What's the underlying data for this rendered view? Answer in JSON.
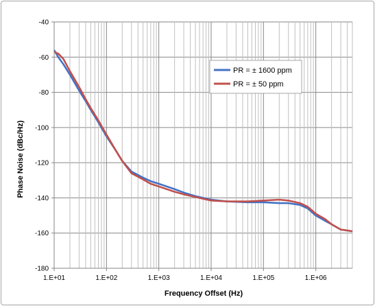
{
  "chart_data": {
    "type": "line",
    "title": "",
    "xlabel": "Frequency Offset (Hz)",
    "ylabel": "Phase Noise (dBc/Hz)",
    "x_scale": "log",
    "xlim": [
      10,
      5000000
    ],
    "ylim": [
      -180,
      -40
    ],
    "x_tick_values": [
      10,
      100,
      1000,
      10000,
      100000,
      1000000
    ],
    "x_tick_labels": [
      "1.E+01",
      "1.E+02",
      "1.E+03",
      "1.E+04",
      "1.E+05",
      "1.E+06"
    ],
    "y_tick_values": [
      -40,
      -60,
      -80,
      -100,
      -120,
      -140,
      -160,
      -180
    ],
    "y_tick_labels": [
      "-40",
      "-60",
      "-80",
      "-100",
      "-120",
      "-140",
      "-160",
      "-180"
    ],
    "grid": true,
    "legend_position": "top-right",
    "series": [
      {
        "name": "PR = ± 1600 ppm",
        "color": "#4472c4",
        "x": [
          10,
          12,
          15,
          20,
          30,
          40,
          50,
          70,
          100,
          150,
          200,
          300,
          500,
          700,
          1000,
          2000,
          3000,
          5000,
          10000,
          20000,
          50000,
          100000,
          200000,
          300000,
          500000,
          700000,
          1000000,
          1500000,
          2000000,
          3000000,
          5000000
        ],
        "y": [
          -56,
          -60,
          -64,
          -70,
          -79,
          -85,
          -90,
          -97,
          -105,
          -113,
          -119,
          -125,
          -128.5,
          -130.5,
          -132,
          -135,
          -137,
          -139,
          -141,
          -142,
          -142.5,
          -142.5,
          -143,
          -143,
          -144,
          -146,
          -150,
          -153,
          -155,
          -158,
          -159
        ]
      },
      {
        "name": "PR = ± 50 ppm",
        "color": "#c0504d",
        "x": [
          10,
          12,
          15,
          20,
          30,
          40,
          50,
          70,
          100,
          150,
          200,
          300,
          500,
          700,
          1000,
          2000,
          3000,
          5000,
          10000,
          20000,
          50000,
          100000,
          200000,
          300000,
          500000,
          700000,
          1000000,
          1500000,
          2000000,
          3000000,
          5000000
        ],
        "y": [
          -57,
          -58,
          -61,
          -68,
          -77,
          -84,
          -89,
          -96,
          -104,
          -113,
          -119,
          -126,
          -129.5,
          -132,
          -133.5,
          -136.5,
          -138,
          -139.5,
          -141.5,
          -142,
          -142,
          -141.5,
          -141,
          -141.5,
          -143,
          -145,
          -149,
          -152,
          -155,
          -158,
          -159
        ]
      }
    ]
  }
}
